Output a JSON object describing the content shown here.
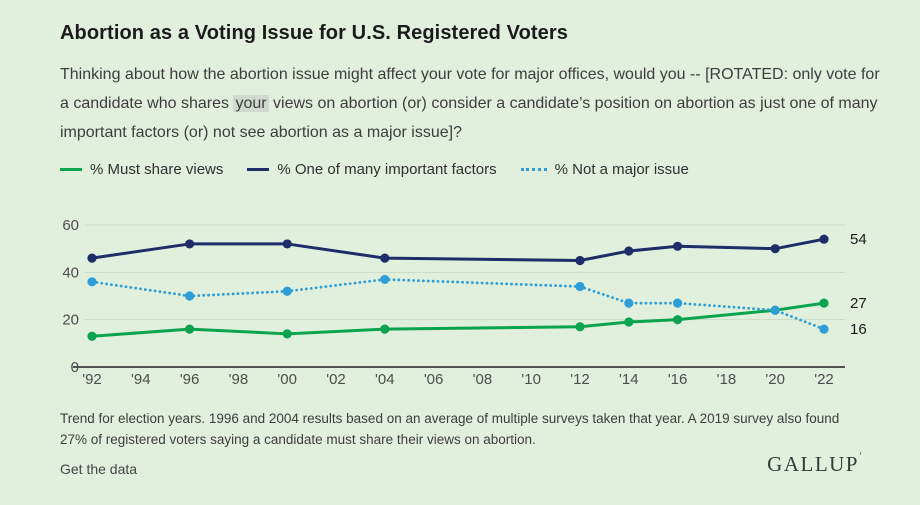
{
  "title": "Abortion as a Voting Issue for U.S. Registered Voters",
  "question": {
    "before": "Thinking about how the abortion issue might affect your vote for major offices, would you -- [ROTATED: only vote for a candidate who shares ",
    "highlight": "your",
    "after": " views on abortion (or) consider a candidate’s position on abortion as just one of many important factors (or) not see abortion as a major issue]?"
  },
  "legend": [
    {
      "label": "% Must share views",
      "color": "#0ba34f",
      "style": "solid"
    },
    {
      "label": "% One of many important factors",
      "color": "#1e2d69",
      "style": "solid"
    },
    {
      "label": "% Not a major issue",
      "color": "#2f9ed8",
      "style": "dotted"
    }
  ],
  "chart_data": {
    "type": "line",
    "title": "Abortion as a Voting Issue for U.S. Registered Voters",
    "x": [
      1992,
      1996,
      2000,
      2004,
      2012,
      2014,
      2016,
      2020,
      2022
    ],
    "series": [
      {
        "name": "% Must share views",
        "color": "#0ba34f",
        "style": "solid",
        "values": [
          13,
          16,
          14,
          16,
          17,
          19,
          20,
          24,
          27
        ],
        "end_label": "27"
      },
      {
        "name": "% One of many important factors",
        "color": "#1e2d69",
        "style": "solid",
        "values": [
          46,
          52,
          52,
          46,
          45,
          49,
          51,
          50,
          54
        ],
        "end_label": "54"
      },
      {
        "name": "% Not a major issue",
        "color": "#2f9ed8",
        "style": "dotted",
        "values": [
          36,
          30,
          32,
          37,
          34,
          27,
          27,
          24,
          16
        ],
        "end_label": "16"
      }
    ],
    "x_tick_labels": [
      "'92",
      "'94",
      "'96",
      "'98",
      "'00",
      "'02",
      "'04",
      "'06",
      "'08",
      "'10",
      "'12",
      "'14",
      "'16",
      "'18",
      "'20",
      "'22"
    ],
    "x_tick_start_year": 1992,
    "x_tick_step_years": 2,
    "y_ticks": [
      0,
      20,
      40,
      60
    ],
    "ylim": [
      0,
      60
    ],
    "xlim": [
      1992,
      2022
    ],
    "grid": "horizontal",
    "legend_position": "top",
    "colors": {
      "grid": "#c9dcc6",
      "axis": "#1f1f1f",
      "tick_text": "#4d4d4d",
      "end_label_text": "#1b1b1b"
    }
  },
  "footnote": "Trend for election years. 1996 and 2004 results based on an average of multiple surveys taken that year. A 2019 survey also found 27% of registered voters saying a candidate must share their views on abortion.",
  "link_label": "Get the data",
  "brand": {
    "name": "GALLUP",
    "trademark": "’"
  },
  "page_background": "#e0f0dd"
}
